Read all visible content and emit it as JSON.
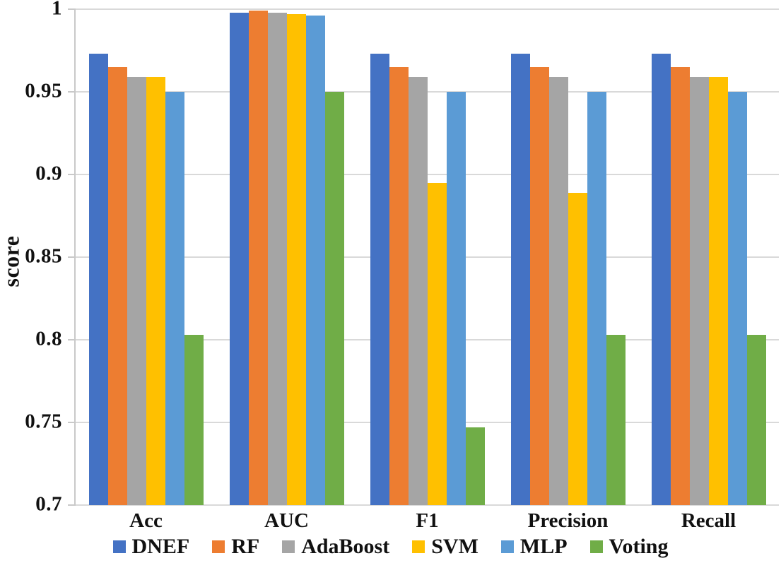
{
  "chart_data": {
    "type": "bar",
    "title": "",
    "xlabel": "",
    "ylabel": "score",
    "categories": [
      "Acc",
      "AUC",
      "F1",
      "Precision",
      "Recall"
    ],
    "series": [
      {
        "name": "DNEF",
        "color": "#4472C4",
        "values": [
          0.973,
          0.998,
          0.973,
          0.973,
          0.973
        ]
      },
      {
        "name": "RF",
        "color": "#ED7D31",
        "values": [
          0.965,
          0.999,
          0.965,
          0.965,
          0.965
        ]
      },
      {
        "name": "AdaBoost",
        "color": "#A5A5A5",
        "values": [
          0.959,
          0.998,
          0.959,
          0.959,
          0.959
        ]
      },
      {
        "name": "SVM",
        "color": "#FFC000",
        "values": [
          0.959,
          0.997,
          0.895,
          0.889,
          0.959
        ]
      },
      {
        "name": "MLP",
        "color": "#5B9BD5",
        "values": [
          0.95,
          0.996,
          0.95,
          0.95,
          0.95
        ]
      },
      {
        "name": "Voting",
        "color": "#70AD47",
        "values": [
          0.803,
          0.95,
          0.747,
          0.803,
          0.803
        ]
      }
    ],
    "ylim": [
      0.7,
      1.0
    ],
    "ytick_step": 0.05,
    "ytick_labels_top_to_bottom": [
      "1",
      "0.95",
      "0.9",
      "0.85",
      "0.8",
      "0.75",
      "0.7"
    ],
    "grid": true,
    "legend_position": "bottom"
  },
  "colors": {
    "gridline": "#d9d9d9",
    "axis": "#c9c9c9",
    "text": "#111111",
    "background": "#ffffff"
  }
}
